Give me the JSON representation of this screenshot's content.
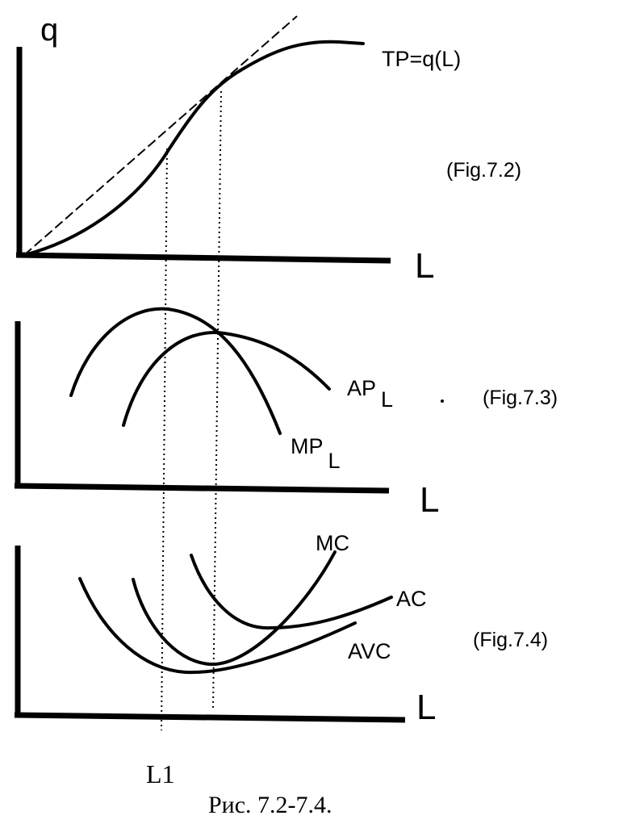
{
  "panel_top": {
    "y_axis_label": "q",
    "x_axis_label": "L",
    "curve_label": "TP=q(L)",
    "figure_label": "(Fig.7.2)"
  },
  "panel_middle": {
    "x_axis_label": "L",
    "ap_label": "AP",
    "ap_subscript": "L",
    "mp_label": "MP",
    "mp_subscript": "L",
    "figure_label": "(Fig.7.3)"
  },
  "panel_bottom": {
    "x_axis_label": "L",
    "mc_label": "MC",
    "ac_label": "AC",
    "avc_label": "AVC",
    "figure_label": "(Fig.7.4)"
  },
  "l1_label": "L1",
  "caption": "Рис.  7.2-7.4."
}
